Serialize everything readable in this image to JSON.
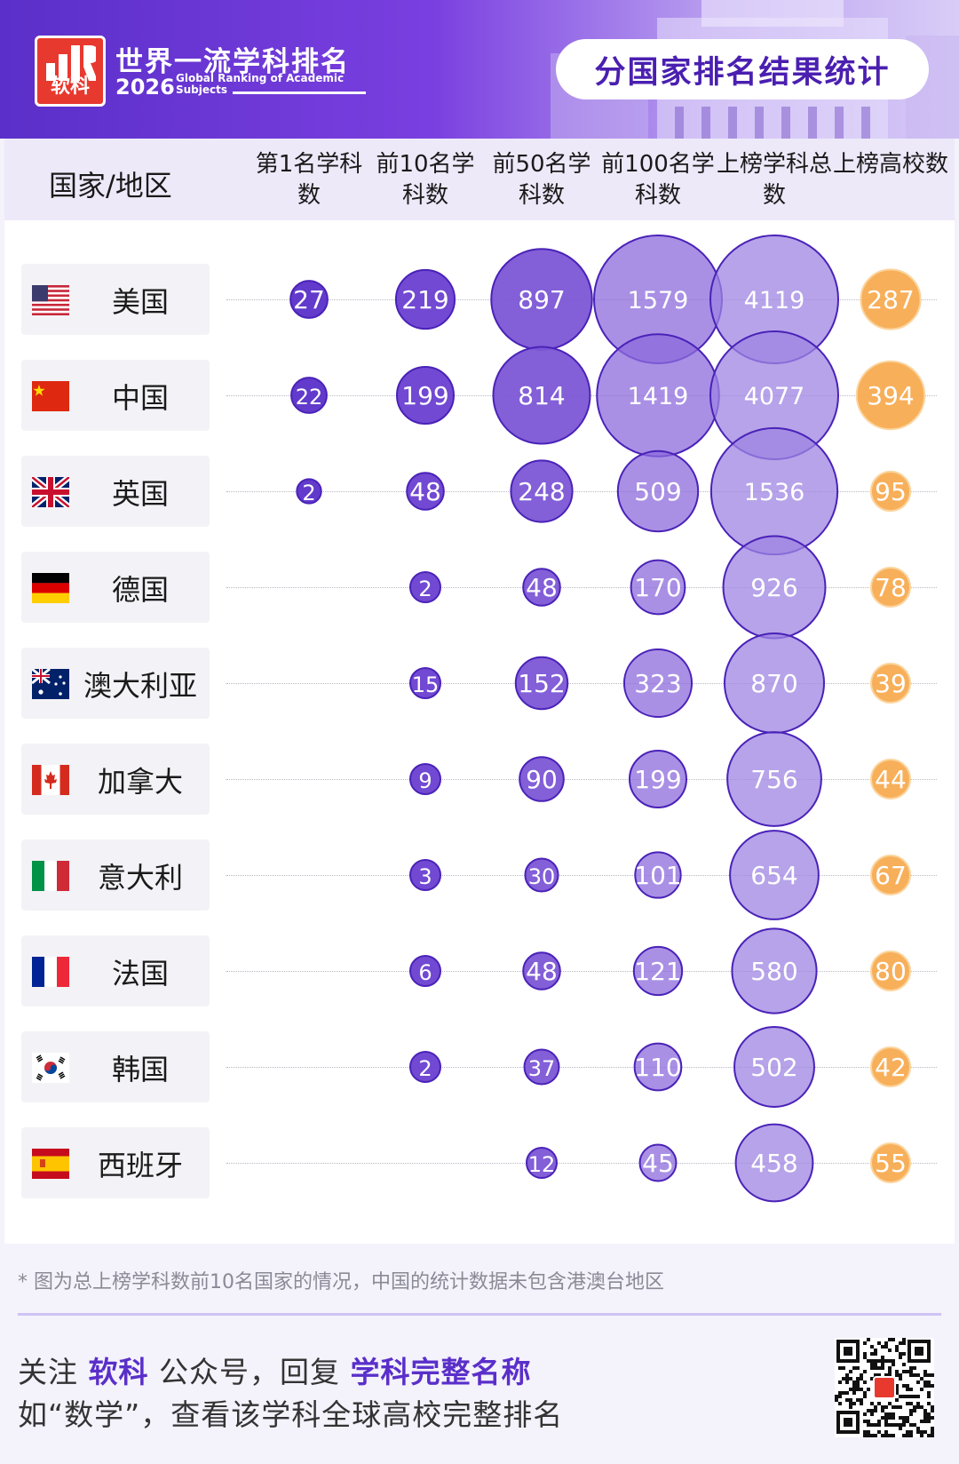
{
  "header": {
    "logo_text": "软科",
    "brand_title": "世界一流学科排名",
    "brand_year": "2026",
    "brand_subtitle": "Global Ranking of Academic Subjects",
    "pill_title": "分国家排名结果统计"
  },
  "columns": {
    "country": "国家/地区",
    "col1": "第1名学科数",
    "col2": "前10名学科数",
    "col3": "前50名学科数",
    "col4": "前100名学科数",
    "col5": "上榜学科总数",
    "col6": "上榜高校数"
  },
  "countries": [
    {
      "name": "美国",
      "flag": "us-flag"
    },
    {
      "name": "中国",
      "flag": "cn-flag"
    },
    {
      "name": "英国",
      "flag": "uk-flag"
    },
    {
      "name": "德国",
      "flag": "de-flag"
    },
    {
      "name": "澳大利亚",
      "flag": "au-flag"
    },
    {
      "name": "加拿大",
      "flag": "ca-flag"
    },
    {
      "name": "意大利",
      "flag": "it-flag"
    },
    {
      "name": "法国",
      "flag": "fr-flag"
    },
    {
      "name": "韩国",
      "flag": "kr-flag"
    },
    {
      "name": "西班牙",
      "flag": "es-flag"
    }
  ],
  "chart_data": {
    "type": "table",
    "categories": [
      "美国",
      "中国",
      "英国",
      "德国",
      "澳大利亚",
      "加拿大",
      "意大利",
      "法国",
      "韩国",
      "西班牙"
    ],
    "series": [
      {
        "name": "第1名学科数",
        "values": [
          27,
          22,
          2,
          null,
          null,
          null,
          null,
          null,
          null,
          null
        ]
      },
      {
        "name": "前10名学科数",
        "values": [
          219,
          199,
          48,
          2,
          15,
          9,
          3,
          6,
          2,
          null
        ]
      },
      {
        "name": "前50名学科数",
        "values": [
          897,
          814,
          248,
          48,
          152,
          90,
          30,
          48,
          37,
          12
        ]
      },
      {
        "name": "前100名学科数",
        "values": [
          1579,
          1419,
          509,
          170,
          323,
          199,
          101,
          121,
          110,
          45
        ]
      },
      {
        "name": "上榜学科总数",
        "values": [
          4119,
          4077,
          1536,
          926,
          870,
          756,
          654,
          580,
          502,
          458
        ]
      },
      {
        "name": "上榜高校数",
        "values": [
          287,
          394,
          95,
          78,
          39,
          44,
          67,
          80,
          42,
          55
        ]
      }
    ],
    "colors": {
      "col1": "#5a2fc9",
      "col2": "#6a3fd0",
      "col3": "#7c56d6",
      "col4": "#8c6bdc",
      "col5": "#9e84e2",
      "universities": "#f7a84c"
    }
  },
  "footer": {
    "note": "* 图为总上榜学科数前10名国家的情况，中国的统计数据未包含港澳台地区",
    "follow_prefix": "关注 ",
    "follow_brand": "软科",
    "follow_mid": " 公众号，回复 ",
    "follow_key": "学科完整名称",
    "follow_line2": "如“数学”，查看该学科全球高校完整排名"
  }
}
